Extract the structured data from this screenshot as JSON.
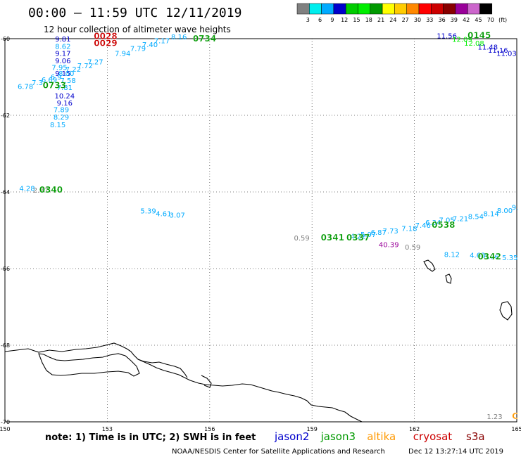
{
  "header": {
    "title": "00:00 – 11:59 UTC 12/11/2019",
    "subtitle": "12 hour collection of altimeter wave heights"
  },
  "legend_scale": {
    "labels": [
      "3",
      "6",
      "9",
      "12",
      "15",
      "18",
      "21",
      "24",
      "27",
      "30",
      "33",
      "36",
      "39",
      "42",
      "45",
      "70",
      "(ft)"
    ],
    "colors": [
      "#808080",
      "#00eeee",
      "#00aaff",
      "#0000cc",
      "#00cc00",
      "#00ee00",
      "#009900",
      "#ffff00",
      "#ffcc00",
      "#ff8800",
      "#ff0000",
      "#cc0000",
      "#880000",
      "#990099",
      "#cc66cc",
      "#000000"
    ]
  },
  "footer": {
    "note": "note:  1) Time is in UTC;  2) SWH is in feet",
    "credit": "NOAA/NESDIS Center for Satellite Applications and Research",
    "timestamp": "Dec 12 13:27:14 UTC 2019",
    "satellites": [
      {
        "name": "jason2",
        "color": "#0000cc"
      },
      {
        "name": "jason3",
        "color": "#009900"
      },
      {
        "name": "altika",
        "color": "#ff9900"
      },
      {
        "name": "cryosat",
        "color": "#cc0000"
      },
      {
        "name": "s3a",
        "color": "#880000"
      }
    ]
  },
  "chart_data": {
    "type": "scatter",
    "xlim": [
      150,
      165
    ],
    "ylim": [
      -70,
      -60
    ],
    "x_ticks": [
      "150",
      "153",
      "156",
      "159",
      "162",
      "165"
    ],
    "y_ticks": [
      "-60",
      "-62",
      "-64",
      "-66",
      "-68",
      "-70"
    ],
    "grid": true,
    "labels": [
      {
        "t": "9.81",
        "x": 151.7,
        "y": -60.07,
        "c": "#0000cc"
      },
      {
        "t": "8.62",
        "x": 151.7,
        "y": -60.27,
        "c": "#00aaff"
      },
      {
        "t": "9.17",
        "x": 151.7,
        "y": -60.45,
        "c": "#0000cc"
      },
      {
        "t": "9.06",
        "x": 151.7,
        "y": -60.64,
        "c": "#0000cc"
      },
      {
        "t": "7.95",
        "x": 151.6,
        "y": -60.82,
        "c": "#00aaff"
      },
      {
        "t": "9.15",
        "x": 151.7,
        "y": -60.97,
        "c": "#0000cc"
      },
      {
        "t": "8.00",
        "x": 151.8,
        "y": -60.97,
        "c": "#00aaff"
      },
      {
        "t": "7.22",
        "x": 152.0,
        "y": -60.86,
        "c": "#00aaff"
      },
      {
        "t": "7.72",
        "x": 152.35,
        "y": -60.77,
        "c": "#00aaff"
      },
      {
        "t": "7.27",
        "x": 152.65,
        "y": -60.67,
        "c": "#00aaff"
      },
      {
        "t": "7.94",
        "x": 153.45,
        "y": -60.45,
        "c": "#00aaff"
      },
      {
        "t": "7.79",
        "x": 153.9,
        "y": -60.32,
        "c": "#00aaff"
      },
      {
        "t": "7.40",
        "x": 154.25,
        "y": -60.22,
        "c": "#00aaff"
      },
      {
        "t": "7.17",
        "x": 154.6,
        "y": -60.12,
        "c": "#00aaff"
      },
      {
        "t": "8.16",
        "x": 155.1,
        "y": -60.02,
        "c": "#00aaff"
      },
      {
        "t": "6.78",
        "x": 150.6,
        "y": -61.31,
        "c": "#00aaff"
      },
      {
        "t": "7.3",
        "x": 150.95,
        "y": -61.21,
        "c": "#00aaff"
      },
      {
        "t": "6.69",
        "x": 151.3,
        "y": -61.14,
        "c": "#00aaff"
      },
      {
        "t": "6.9",
        "x": 151.5,
        "y": -61.06,
        "c": "#00aaff"
      },
      {
        "t": "7.58",
        "x": 151.85,
        "y": -61.16,
        "c": "#00aaff"
      },
      {
        "t": "7.81",
        "x": 151.75,
        "y": -61.34,
        "c": "#00aaff"
      },
      {
        "t": "10.24",
        "x": 151.75,
        "y": -61.56,
        "c": "#0000cc"
      },
      {
        "t": "9.16",
        "x": 151.75,
        "y": -61.74,
        "c": "#0000cc"
      },
      {
        "t": "7.89",
        "x": 151.65,
        "y": -61.92,
        "c": "#00aaff"
      },
      {
        "t": "8.29",
        "x": 151.65,
        "y": -62.11,
        "c": "#00aaff"
      },
      {
        "t": "8.15",
        "x": 151.55,
        "y": -62.31,
        "c": "#00aaff"
      },
      {
        "t": "11.56",
        "x": 162.95,
        "y": -59.99,
        "c": "#0000cc"
      },
      {
        "t": "12.09",
        "x": 163.4,
        "y": -60.08,
        "c": "#00ee00"
      },
      {
        "t": "12.08",
        "x": 163.75,
        "y": -60.18,
        "c": "#00ee00"
      },
      {
        "t": "11.48",
        "x": 164.15,
        "y": -60.28,
        "c": "#0000cc"
      },
      {
        "t": "11.16",
        "x": 164.45,
        "y": -60.37,
        "c": "#0000cc"
      },
      {
        "t": "11.03",
        "x": 164.7,
        "y": -60.45,
        "c": "#0000cc"
      },
      {
        "t": "4.28",
        "x": 150.65,
        "y": -63.97,
        "c": "#00aaff"
      },
      {
        "t": "2.87",
        "x": 151.05,
        "y": -64.02,
        "c": "#808080"
      },
      {
        "t": "5.39",
        "x": 154.2,
        "y": -64.56,
        "c": "#00aaff"
      },
      {
        "t": "4.61",
        "x": 154.65,
        "y": -64.63,
        "c": "#00aaff"
      },
      {
        "t": "3.07",
        "x": 155.05,
        "y": -64.67,
        "c": "#00aaff"
      },
      {
        "t": "0.59",
        "x": 158.7,
        "y": -65.27,
        "c": "#808080"
      },
      {
        "t": "4.22",
        "x": 160.35,
        "y": -65.22,
        "c": "#00aaff"
      },
      {
        "t": "5.97",
        "x": 160.65,
        "y": -65.17,
        "c": "#00aaff"
      },
      {
        "t": "6.87",
        "x": 160.95,
        "y": -65.12,
        "c": "#00aaff"
      },
      {
        "t": "7.73",
        "x": 161.3,
        "y": -65.08,
        "c": "#00aaff"
      },
      {
        "t": "7.18",
        "x": 161.85,
        "y": -65.02,
        "c": "#00aaff"
      },
      {
        "t": "7.46",
        "x": 162.25,
        "y": -64.94,
        "c": "#00aaff"
      },
      {
        "t": "6.34",
        "x": 162.55,
        "y": -64.86,
        "c": "#00aaff"
      },
      {
        "t": "7.05",
        "x": 162.95,
        "y": -64.8,
        "c": "#00aaff"
      },
      {
        "t": "7.21",
        "x": 163.35,
        "y": -64.76,
        "c": "#00aaff"
      },
      {
        "t": "8.54",
        "x": 163.8,
        "y": -64.71,
        "c": "#00aaff"
      },
      {
        "t": "8.14",
        "x": 164.25,
        "y": -64.63,
        "c": "#00aaff"
      },
      {
        "t": "8.00",
        "x": 164.65,
        "y": -64.55,
        "c": "#00aaff"
      },
      {
        "t": "9.",
        "x": 164.95,
        "y": -64.47,
        "c": "#00aaff"
      },
      {
        "t": "40.39",
        "x": 161.25,
        "y": -65.44,
        "c": "#990099"
      },
      {
        "t": "0.59",
        "x": 161.95,
        "y": -65.5,
        "c": "#808080"
      },
      {
        "t": "8.12",
        "x": 163.1,
        "y": -65.7,
        "c": "#00aaff"
      },
      {
        "t": "4.63",
        "x": 163.85,
        "y": -65.72,
        "c": "#00aaff"
      },
      {
        "t": "6.06",
        "x": 164.25,
        "y": -65.75,
        "c": "#00aaff"
      },
      {
        "t": "5.35",
        "x": 164.8,
        "y": -65.78,
        "c": "#00aaff"
      },
      {
        "t": "1.23",
        "x": 164.35,
        "y": -69.93,
        "c": "#808080"
      }
    ],
    "time_labels": [
      {
        "t": "0028",
        "x": 152.95,
        "y": -60.01,
        "c": "#cc0000"
      },
      {
        "t": "0029",
        "x": 152.95,
        "y": -60.19,
        "c": "#cc0000"
      },
      {
        "t": "0734",
        "x": 155.85,
        "y": -60.07,
        "c": "#009900"
      },
      {
        "t": "0733",
        "x": 151.45,
        "y": -61.29,
        "c": "#009900"
      },
      {
        "t": "0145",
        "x": 163.9,
        "y": -59.99,
        "c": "#009900"
      },
      {
        "t": "0340",
        "x": 151.35,
        "y": -64.02,
        "c": "#009900"
      },
      {
        "t": "0341",
        "x": 159.6,
        "y": -65.27,
        "c": "#009900"
      },
      {
        "t": "0337",
        "x": 160.35,
        "y": -65.27,
        "c": "#009900"
      },
      {
        "t": "0538",
        "x": 162.85,
        "y": -64.94,
        "c": "#009900"
      },
      {
        "t": "0342",
        "x": 164.2,
        "y": -65.76,
        "c": "#009900"
      },
      {
        "t": "C",
        "x": 164.95,
        "y": -69.93,
        "c": "#ff9900"
      }
    ]
  }
}
